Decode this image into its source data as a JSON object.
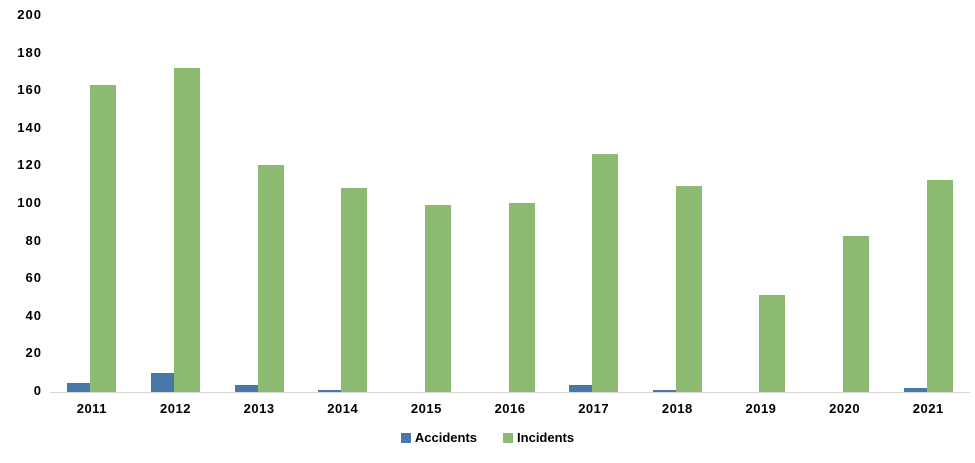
{
  "chart_data": {
    "type": "bar",
    "title": "",
    "categories": [
      "2011",
      "2012",
      "2013",
      "2014",
      "2015",
      "2016",
      "2017",
      "2018",
      "2019",
      "2020",
      "2021"
    ],
    "series": [
      {
        "name": "Accidents",
        "color": "#4878A8",
        "values": [
          5,
          10,
          4,
          1,
          0,
          0,
          4,
          1,
          0,
          0,
          2
        ]
      },
      {
        "name": "Incidents",
        "color": "#8CBA70",
        "values": [
          164,
          173,
          121,
          109,
          100,
          101,
          127,
          110,
          52,
          83,
          113
        ]
      }
    ],
    "xlabel": "",
    "ylabel": "",
    "ylim": [
      0,
      200
    ],
    "ytick_step": 20,
    "grid": false,
    "legend_position": "bottom"
  },
  "colors": {
    "accidents": "#4878A8",
    "incidents": "#8CBA70",
    "axis_line": "#D6D6D6",
    "label_text": "#000000",
    "background": "#FFFFFF"
  }
}
